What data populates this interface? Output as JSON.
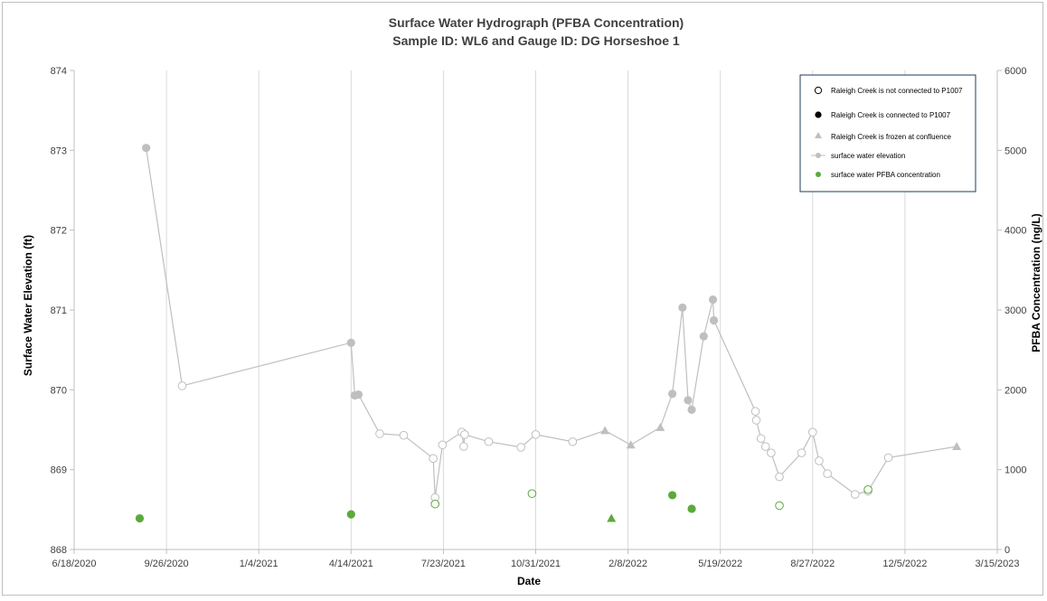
{
  "chart_data": {
    "type": "scatter",
    "title": "Surface Water Hydrograph (PFBA Concentration)",
    "subtitle": "Sample ID: WL6 and Gauge ID: DG Horseshoe 1",
    "xlabel": "Date",
    "ylabel": "Surface Water Elevation (ft)",
    "y2label": "PFBA Concentration (ng/L)",
    "xlim": [
      "2020-06-18",
      "2023-03-15"
    ],
    "ylim": [
      868,
      874
    ],
    "y2lim": [
      0,
      6000
    ],
    "x_ticks": [
      "6/18/2020",
      "9/26/2020",
      "1/4/2021",
      "4/14/2021",
      "7/23/2021",
      "10/31/2021",
      "2/8/2022",
      "5/19/2022",
      "8/27/2022",
      "12/5/2022",
      "3/15/2023"
    ],
    "y_ticks": [
      "868",
      "869",
      "870",
      "871",
      "872",
      "873",
      "874"
    ],
    "y2_ticks": [
      "0",
      "1000",
      "2000",
      "3000",
      "4000",
      "5000",
      "6000"
    ],
    "grid": "vertical",
    "legend_position": "top-right",
    "legend": [
      "Raleigh Creek is not connected to P1007",
      "Raleigh Creek is connected to P1007",
      "Raleigh Creek is frozen at confluence",
      "surface water elevation",
      "surface water PFBA concentration"
    ],
    "colors": {
      "elevation": "#bfbfbf",
      "pfba": "#5aaa3c",
      "marker_gray": "#bfbfbf"
    },
    "series": [
      {
        "name": "surface water elevation",
        "axis": "left",
        "points": [
          {
            "date": "2020-09-04",
            "y": 873.03,
            "status": "connected"
          },
          {
            "date": "2020-10-13",
            "y": 870.05,
            "status": "not_connected"
          },
          {
            "date": "2021-04-14",
            "y": 870.59,
            "status": "connected"
          },
          {
            "date": "2021-04-18",
            "y": 869.93,
            "status": "connected"
          },
          {
            "date": "2021-04-22",
            "y": 869.94,
            "status": "connected"
          },
          {
            "date": "2021-05-15",
            "y": 869.45,
            "status": "not_connected"
          },
          {
            "date": "2021-06-10",
            "y": 869.43,
            "status": "not_connected"
          },
          {
            "date": "2021-07-12",
            "y": 869.14,
            "status": "not_connected"
          },
          {
            "date": "2021-07-14",
            "y": 868.65,
            "status": "not_connected"
          },
          {
            "date": "2021-07-22",
            "y": 869.31,
            "status": "not_connected"
          },
          {
            "date": "2021-08-12",
            "y": 869.47,
            "status": "not_connected"
          },
          {
            "date": "2021-08-14",
            "y": 869.29,
            "status": "not_connected"
          },
          {
            "date": "2021-08-15",
            "y": 869.44,
            "status": "not_connected"
          },
          {
            "date": "2021-09-10",
            "y": 869.35,
            "status": "not_connected"
          },
          {
            "date": "2021-10-15",
            "y": 869.28,
            "status": "not_connected"
          },
          {
            "date": "2021-10-31",
            "y": 869.44,
            "status": "not_connected"
          },
          {
            "date": "2021-12-10",
            "y": 869.35,
            "status": "not_connected"
          },
          {
            "date": "2022-01-14",
            "y": 869.49,
            "status": "frozen"
          },
          {
            "date": "2022-02-11",
            "y": 869.31,
            "status": "frozen"
          },
          {
            "date": "2022-03-15",
            "y": 869.53,
            "status": "frozen"
          },
          {
            "date": "2022-03-28",
            "y": 869.95,
            "status": "connected"
          },
          {
            "date": "2022-04-08",
            "y": 871.03,
            "status": "connected"
          },
          {
            "date": "2022-04-14",
            "y": 869.87,
            "status": "connected"
          },
          {
            "date": "2022-04-18",
            "y": 869.75,
            "status": "connected"
          },
          {
            "date": "2022-05-01",
            "y": 870.67,
            "status": "connected"
          },
          {
            "date": "2022-05-11",
            "y": 871.13,
            "status": "connected"
          },
          {
            "date": "2022-05-12",
            "y": 870.87,
            "status": "connected"
          },
          {
            "date": "2022-06-26",
            "y": 869.73,
            "status": "not_connected"
          },
          {
            "date": "2022-06-27",
            "y": 869.62,
            "status": "not_connected"
          },
          {
            "date": "2022-07-02",
            "y": 869.39,
            "status": "not_connected"
          },
          {
            "date": "2022-07-07",
            "y": 869.29,
            "status": "not_connected"
          },
          {
            "date": "2022-07-13",
            "y": 869.21,
            "status": "not_connected"
          },
          {
            "date": "2022-07-22",
            "y": 868.91,
            "status": "not_connected"
          },
          {
            "date": "2022-08-15",
            "y": 869.21,
            "status": "not_connected"
          },
          {
            "date": "2022-08-27",
            "y": 869.47,
            "status": "not_connected"
          },
          {
            "date": "2022-09-03",
            "y": 869.11,
            "status": "not_connected"
          },
          {
            "date": "2022-09-12",
            "y": 868.95,
            "status": "not_connected"
          },
          {
            "date": "2022-10-12",
            "y": 868.69,
            "status": "not_connected"
          },
          {
            "date": "2022-10-26",
            "y": 868.73,
            "status": "not_connected"
          },
          {
            "date": "2022-11-17",
            "y": 869.15,
            "status": "not_connected"
          },
          {
            "date": "2023-01-30",
            "y": 869.29,
            "status": "frozen"
          }
        ]
      },
      {
        "name": "surface water PFBA concentration",
        "axis": "right",
        "points": [
          {
            "date": "2020-08-28",
            "y": 390,
            "status": "connected"
          },
          {
            "date": "2021-04-14",
            "y": 440,
            "status": "connected"
          },
          {
            "date": "2021-07-14",
            "y": 570,
            "status": "not_connected"
          },
          {
            "date": "2021-10-27",
            "y": 700,
            "status": "not_connected"
          },
          {
            "date": "2022-01-21",
            "y": 390,
            "status": "frozen"
          },
          {
            "date": "2022-03-28",
            "y": 680,
            "status": "connected"
          },
          {
            "date": "2022-04-18",
            "y": 510,
            "status": "connected"
          },
          {
            "date": "2022-07-22",
            "y": 550,
            "status": "not_connected"
          },
          {
            "date": "2022-10-26",
            "y": 750,
            "status": "not_connected"
          }
        ]
      }
    ]
  }
}
